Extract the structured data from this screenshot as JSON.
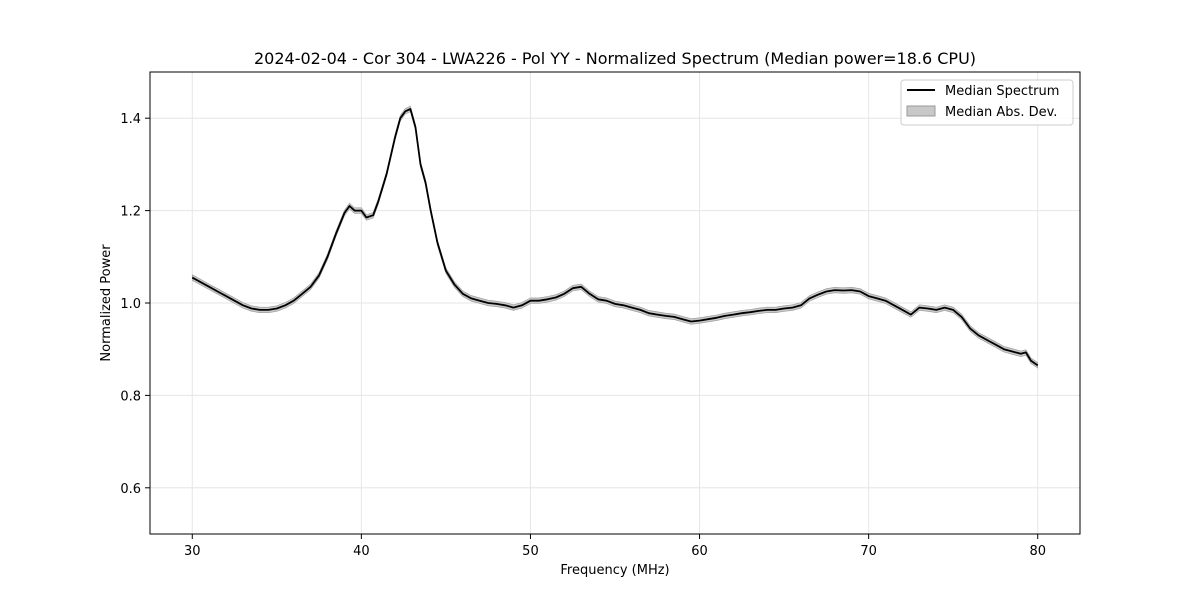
{
  "chart_data": {
    "type": "line",
    "title": "2024-02-04 - Cor 304 - LWA226 - Pol YY - Normalized Spectrum (Median power=18.6 CPU)",
    "xlabel": "Frequency (MHz)",
    "ylabel": "Normalized Power",
    "xlim": [
      27.5,
      82.5
    ],
    "ylim": [
      0.5,
      1.5
    ],
    "xticks": [
      30,
      40,
      50,
      60,
      70,
      80
    ],
    "yticks": [
      0.6,
      0.8,
      1.0,
      1.2,
      1.4
    ],
    "xtick_labels": [
      "30",
      "40",
      "50",
      "60",
      "70",
      "80"
    ],
    "ytick_labels": [
      "0.6",
      "0.8",
      "1.0",
      "1.2",
      "1.4"
    ],
    "grid": true,
    "legend_position": "upper-right",
    "series": [
      {
        "name": "Median Spectrum",
        "kind": "line",
        "color": "#000000",
        "x": [
          30,
          30.5,
          31,
          31.5,
          32,
          32.5,
          33,
          33.5,
          34,
          34.5,
          35,
          35.5,
          36,
          36.5,
          37,
          37.5,
          38,
          38.5,
          39,
          39.3,
          39.6,
          40,
          40.3,
          40.7,
          41,
          41.5,
          42,
          42.3,
          42.6,
          42.9,
          43.2,
          43.5,
          43.8,
          44.1,
          44.5,
          45,
          45.5,
          46,
          46.5,
          47,
          47.5,
          48,
          48.5,
          49,
          49.5,
          50,
          50.5,
          51,
          51.5,
          52,
          52.5,
          53,
          53.5,
          54,
          54.5,
          55,
          55.5,
          56,
          56.5,
          57,
          57.5,
          58,
          58.5,
          59,
          59.5,
          60,
          60.5,
          61,
          61.5,
          62,
          62.5,
          63,
          63.5,
          64,
          64.5,
          65,
          65.5,
          66,
          66.5,
          67,
          67.5,
          68,
          68.5,
          69,
          69.5,
          70,
          70.5,
          71,
          71.5,
          72,
          72.5,
          73,
          73.5,
          74,
          74.5,
          75,
          75.5,
          76,
          76.5,
          77,
          77.5,
          78,
          78.5,
          79,
          79.3,
          79.6,
          80
        ],
        "values": [
          1.055,
          1.045,
          1.035,
          1.025,
          1.015,
          1.005,
          0.995,
          0.988,
          0.985,
          0.985,
          0.988,
          0.995,
          1.005,
          1.02,
          1.035,
          1.06,
          1.1,
          1.15,
          1.195,
          1.21,
          1.2,
          1.2,
          1.185,
          1.19,
          1.22,
          1.28,
          1.36,
          1.4,
          1.415,
          1.42,
          1.38,
          1.3,
          1.26,
          1.2,
          1.13,
          1.07,
          1.04,
          1.02,
          1.01,
          1.005,
          1.0,
          0.998,
          0.995,
          0.99,
          0.995,
          1.005,
          1.005,
          1.008,
          1.012,
          1.02,
          1.032,
          1.035,
          1.02,
          1.008,
          1.005,
          0.998,
          0.995,
          0.99,
          0.985,
          0.978,
          0.975,
          0.972,
          0.97,
          0.965,
          0.96,
          0.962,
          0.965,
          0.968,
          0.972,
          0.975,
          0.978,
          0.98,
          0.983,
          0.985,
          0.985,
          0.988,
          0.99,
          0.995,
          1.01,
          1.018,
          1.025,
          1.028,
          1.027,
          1.028,
          1.025,
          1.015,
          1.01,
          1.005,
          0.995,
          0.985,
          0.975,
          0.99,
          0.988,
          0.985,
          0.99,
          0.985,
          0.97,
          0.945,
          0.93,
          0.92,
          0.91,
          0.9,
          0.895,
          0.89,
          0.893,
          0.875,
          0.865
        ]
      },
      {
        "name": "Median Abs. Dev.",
        "kind": "band",
        "color": "#c8c8c8",
        "edge_color": "#999999",
        "half_width": 0.006
      }
    ]
  }
}
